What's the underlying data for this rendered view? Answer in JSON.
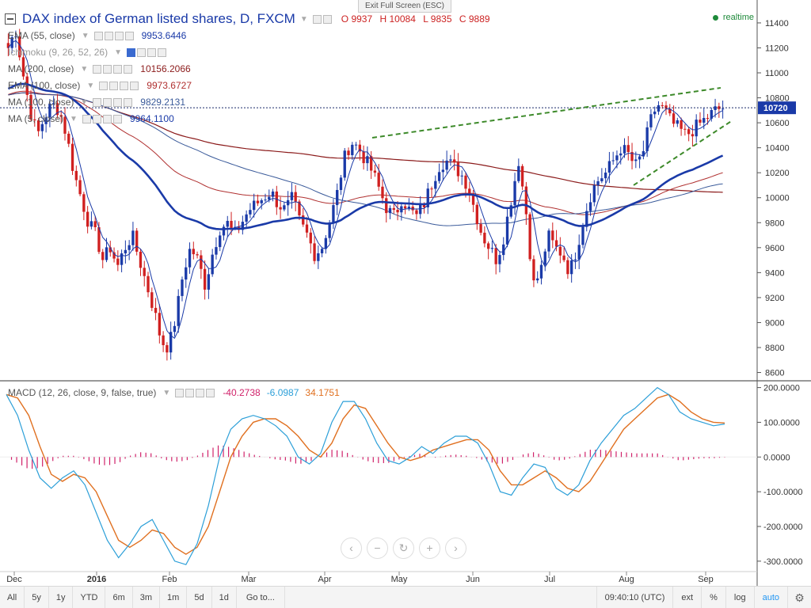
{
  "header": {
    "title": "DAX index of German listed shares, D, FXCM",
    "ohlc": [
      {
        "k": "O",
        "v": "9937"
      },
      {
        "k": "H",
        "v": "10084"
      },
      {
        "k": "L",
        "v": "9835"
      },
      {
        "k": "C",
        "v": "9889"
      }
    ],
    "realtime": "realtime",
    "exit_fullscreen": "Exit Full Screen (ESC)"
  },
  "indicators": [
    {
      "label": "EMA (55, close)",
      "value": "9953.6446",
      "color": "#1a3aa8"
    },
    {
      "label": "Ichimoku (9, 26, 52, 26)",
      "value": "",
      "color": "#888888"
    },
    {
      "label": "MA (200, close)",
      "value": "10156.2066",
      "color": "#8b1a1a"
    },
    {
      "label": "EMA (100, close)",
      "value": "9973.6727",
      "color": "#b03030"
    },
    {
      "label": "MA (100, close)",
      "value": "9829.2131",
      "color": "#3a5a9a"
    },
    {
      "label": "MA (5, close)",
      "value": "9964.1100",
      "color": "#1a3aa8"
    }
  ],
  "macd": {
    "label": "MACD (12, 26, close, 9, false, true)",
    "v1": "-40.2738",
    "v2": "-6.0987",
    "v3": "34.1751",
    "c1": "#d0226a",
    "c2": "#2c9fd8",
    "c3": "#e07020"
  },
  "bottom": {
    "timeframes": [
      "All",
      "5y",
      "1y",
      "YTD",
      "6m",
      "3m",
      "1m",
      "5d",
      "1d"
    ],
    "goto": "Go to...",
    "time": "09:40:10 (UTC)",
    "ext": "ext",
    "pct": "%",
    "log": "log",
    "auto": "auto"
  },
  "chart_data": [
    {
      "type": "candlestick",
      "title": "DAX index of German listed shares, D, FXCM",
      "x_ticks": [
        "Dec",
        "2016",
        "Feb",
        "Mar",
        "Apr",
        "May",
        "Jun",
        "Jul",
        "Aug",
        "Sep"
      ],
      "y_ticks": [
        8600,
        8800,
        9000,
        9200,
        9400,
        9600,
        9800,
        10000,
        10200,
        10400,
        10600,
        10800,
        11000,
        11200,
        11400
      ],
      "ylim": [
        8540,
        11520
      ],
      "last_price": "10720",
      "price_path": [
        11200,
        11350,
        11000,
        10700,
        10500,
        10650,
        10750,
        10700,
        10500,
        10200,
        10000,
        9800,
        9700,
        9500,
        9600,
        9450,
        9600,
        9700,
        9500,
        9300,
        9100,
        8850,
        8800,
        9050,
        9400,
        9600,
        9500,
        9300,
        9550,
        9750,
        9800,
        9700,
        9800,
        9900,
        9950,
        10000,
        10050,
        9950,
        9900,
        10000,
        9800,
        9700,
        9550,
        9600,
        9800,
        10000,
        10300,
        10450,
        10400,
        10300,
        10200,
        10050,
        9900,
        9850,
        10000,
        9900,
        9850,
        9950,
        10100,
        10250,
        10300,
        10250,
        10200,
        10100,
        9900,
        9700,
        9600,
        9500,
        9700,
        10000,
        10300,
        9900,
        9300,
        9400,
        9700,
        9600,
        9550,
        9400,
        9600,
        9850,
        10050,
        10150,
        10200,
        10300,
        10400,
        10350,
        10250,
        10350,
        10600,
        10750,
        10700,
        10600,
        10550,
        10500,
        10550,
        10600,
        10650,
        10700,
        10720
      ],
      "wedge_upper": [
        [
          10480,
          470
        ],
        [
          10880,
          910
        ]
      ],
      "wedge_lower": [
        [
          10100,
          800
        ],
        [
          10620,
          925
        ]
      ],
      "series": [
        {
          "name": "EMA (55, close)",
          "color": "#1a3aa8"
        },
        {
          "name": "MA (200, close)",
          "color": "#8b1a1a"
        },
        {
          "name": "EMA (100, close)",
          "color": "#b03030"
        },
        {
          "name": "MA (100, close)",
          "color": "#3a5a9a"
        },
        {
          "name": "MA (5, close)",
          "color": "#1a3aa8"
        }
      ]
    },
    {
      "type": "macd",
      "title": "MACD (12, 26, close, 9, false, true)",
      "y_ticks": [
        -300,
        -200,
        -100,
        0,
        100,
        200
      ],
      "ylim": [
        -330,
        215
      ],
      "macd_line": [
        180,
        120,
        20,
        -60,
        -90,
        -60,
        -40,
        -80,
        -160,
        -240,
        -290,
        -250,
        -200,
        -180,
        -240,
        -300,
        -310,
        -250,
        -140,
        0,
        80,
        110,
        120,
        110,
        90,
        60,
        0,
        -20,
        10,
        100,
        160,
        160,
        110,
        40,
        -10,
        -20,
        0,
        30,
        10,
        40,
        60,
        60,
        40,
        -20,
        -100,
        -110,
        -60,
        -20,
        -30,
        -90,
        -110,
        -80,
        -10,
        40,
        80,
        120,
        140,
        170,
        200,
        180,
        130,
        110,
        100,
        90,
        95
      ],
      "signal_line": [
        180,
        170,
        120,
        30,
        -50,
        -70,
        -50,
        -60,
        -100,
        -170,
        -240,
        -260,
        -240,
        -210,
        -220,
        -260,
        -280,
        -260,
        -200,
        -100,
        0,
        60,
        100,
        110,
        110,
        90,
        60,
        20,
        0,
        40,
        110,
        150,
        140,
        90,
        40,
        0,
        -10,
        0,
        20,
        30,
        40,
        50,
        50,
        20,
        -40,
        -80,
        -80,
        -60,
        -40,
        -60,
        -90,
        -100,
        -70,
        -20,
        30,
        80,
        110,
        140,
        170,
        180,
        160,
        130,
        110,
        100,
        98
      ],
      "histogram_scale": 0.35,
      "series": [
        {
          "name": "Histogram",
          "color": "#d0226a"
        },
        {
          "name": "MACD",
          "color": "#2c9fd8"
        },
        {
          "name": "Signal",
          "color": "#e07020"
        }
      ]
    }
  ]
}
